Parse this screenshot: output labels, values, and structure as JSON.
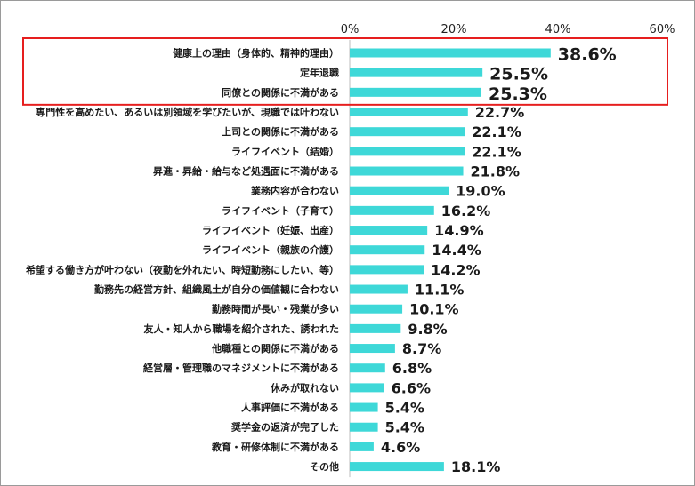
{
  "chart_data": {
    "type": "bar",
    "orientation": "horizontal",
    "title": "",
    "xlabel": "",
    "ylabel": "",
    "xlim": [
      0,
      60
    ],
    "ticks": [
      0,
      20,
      40,
      60
    ],
    "tick_labels": [
      "0%",
      "20%",
      "40%",
      "60%"
    ],
    "grid": false,
    "bar_color": "#3ed8d8",
    "highlight_color": "#e61e1e",
    "highlighted_top_n": 3,
    "categories": [
      "健康上の理由（身体的、精神的理由）",
      "定年退職",
      "同僚との関係に不満がある",
      "専門性を高めたい、あるいは別領域を学びたいが、現職では叶わない",
      "上司との関係に不満がある",
      "ライフイベント（結婚）",
      "昇進・昇給・給与など処遇面に不満がある",
      "業務内容が合わない",
      "ライフイベント（子育て）",
      "ライフイベント（妊娠、出産）",
      "ライフイベント（親族の介護）",
      "希望する働き方が叶わない（夜勤を外れたい、時短勤務にしたい、等）",
      "勤務先の経営方針、組織風土が自分の価値観に合わない",
      "勤務時間が長い・残業が多い",
      "友人・知人から職場を紹介された、誘われた",
      "他職種との関係に不満がある",
      "経営層・管理職のマネジメントに不満がある",
      "休みが取れない",
      "人事評価に不満がある",
      "奨学金の返済が完了した",
      "教育・研修体制に不満がある",
      "その他"
    ],
    "values": [
      38.6,
      25.5,
      25.3,
      22.7,
      22.1,
      22.1,
      21.8,
      19.0,
      16.2,
      14.9,
      14.4,
      14.2,
      11.1,
      10.1,
      9.8,
      8.7,
      6.8,
      6.6,
      5.4,
      5.4,
      4.6,
      18.1
    ],
    "value_labels": [
      "38.6%",
      "25.5%",
      "25.3%",
      "22.7%",
      "22.1%",
      "22.1%",
      "21.8%",
      "19.0%",
      "16.2%",
      "14.9%",
      "14.4%",
      "14.2%",
      "11.1%",
      "10.1%",
      "9.8%",
      "8.7%",
      "6.8%",
      "6.6%",
      "5.4%",
      "5.4%",
      "4.6%",
      "18.1%"
    ]
  }
}
